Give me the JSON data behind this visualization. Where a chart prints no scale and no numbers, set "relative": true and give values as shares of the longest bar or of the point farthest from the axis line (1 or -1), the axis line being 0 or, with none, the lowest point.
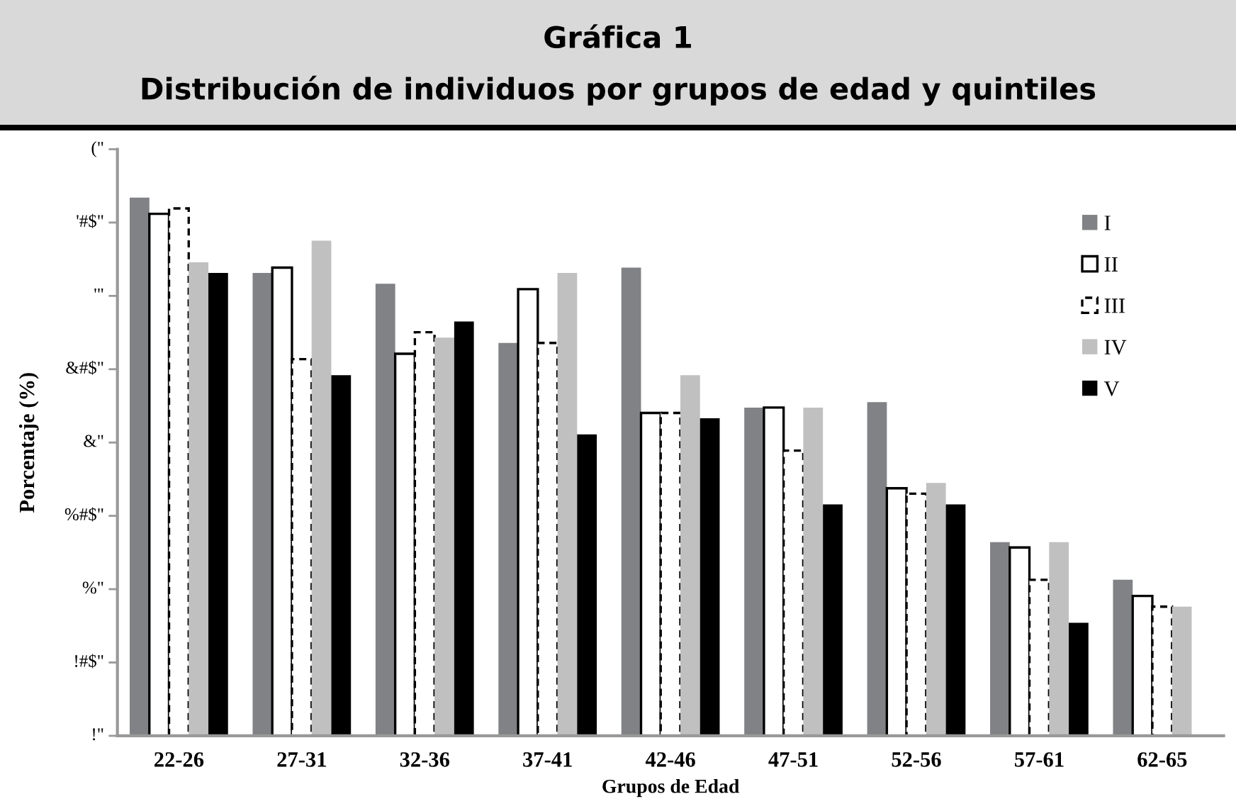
{
  "chart_data": {
    "type": "bar",
    "title": "Gráfica 1",
    "subtitle": "Distribución de individuos por grupos de edad y quintiles",
    "xlabel": "Grupos de Edad",
    "ylabel": "Porcentaje (%)",
    "relative": true,
    "categories": [
      "22-26",
      "27-31",
      "32-36",
      "37-41",
      "42-46",
      "47-51",
      "52-56",
      "57-61",
      "62-65"
    ],
    "series": [
      {
        "name": "I",
        "color": "#808285",
        "values": [
          1,
          0.86,
          0.84,
          0.73,
          0.87,
          0.61,
          0.62,
          0.36,
          0.29
        ]
      },
      {
        "name": "II",
        "color": "#ffffff",
        "line_style": "solid",
        "values": [
          0.97,
          0.87,
          0.71,
          0.83,
          0.6,
          0.61,
          0.46,
          0.35,
          0.26
        ]
      },
      {
        "name": "III",
        "color": "#ffffff",
        "line_style": "dashed",
        "values": [
          0.98,
          0.7,
          0.75,
          0.73,
          0.6,
          0.53,
          0.45,
          0.29,
          0.24
        ]
      },
      {
        "name": "IV",
        "color": "#c0c0c0",
        "values": [
          0.88,
          0.92,
          0.74,
          0.86,
          0.67,
          0.61,
          0.47,
          0.36,
          0.24
        ]
      },
      {
        "name": "V",
        "color": "#000000",
        "values": [
          0.86,
          0.67,
          0.77,
          0.56,
          0.59,
          0.43,
          0.43,
          0.21,
          null
        ]
      }
    ],
    "annotations": [
      "!\"",
      "!#$\"",
      "%\"",
      "%#$\"",
      "&\"",
      "&#$\"",
      "'\"",
      "'#$\"",
      "(\""
    ],
    "legend": "right"
  }
}
